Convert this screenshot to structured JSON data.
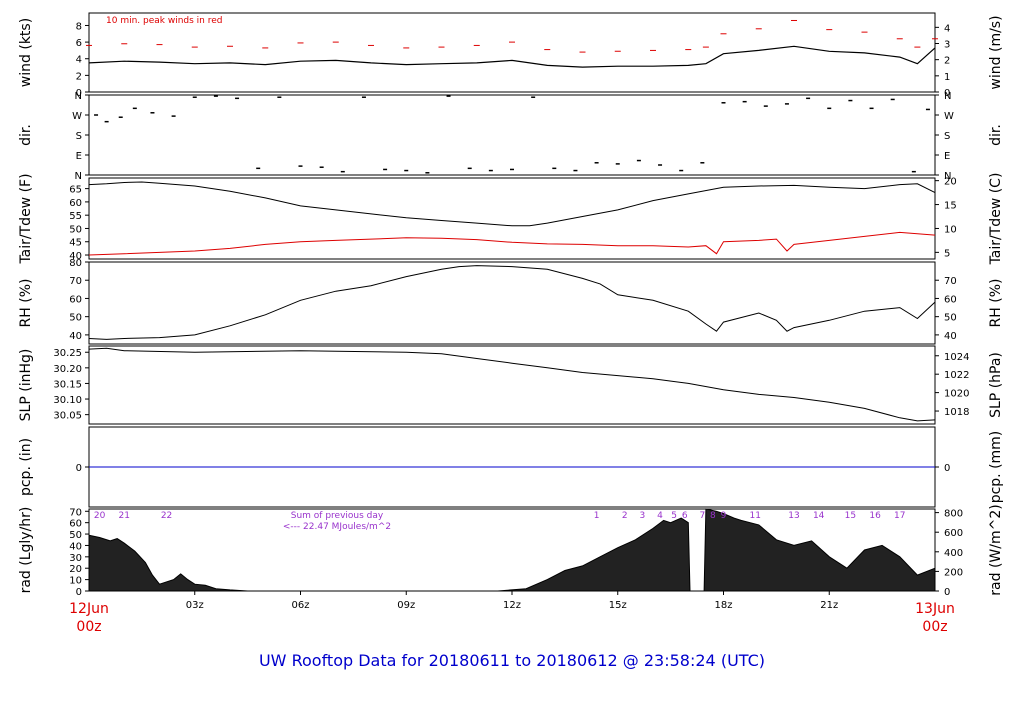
{
  "title": "UW Rooftop Data for 20180611  to  20180612 @ 23:58:24  (UTC)",
  "colors": {
    "title": "#0000cc",
    "date_labels": "#dd0000",
    "peak_winds": "#dd0000",
    "dewpoint": "#dd0000",
    "precip_line": "#0000cc",
    "annotation": "#9933cc",
    "trace": "#000000"
  },
  "time_axis": {
    "start_label_top": "12Jun",
    "start_label_bottom": "00z",
    "end_label_top": "13Jun",
    "end_label_bottom": "00z",
    "ticks": [
      {
        "hour": 3,
        "label": "03z"
      },
      {
        "hour": 6,
        "label": "06z"
      },
      {
        "hour": 9,
        "label": "09z"
      },
      {
        "hour": 12,
        "label": "12z"
      },
      {
        "hour": 15,
        "label": "15z"
      },
      {
        "hour": 18,
        "label": "18z"
      },
      {
        "hour": 21,
        "label": "21z"
      }
    ]
  },
  "chart_data": [
    {
      "type": "line",
      "panel": "wind",
      "ylabel": "wind (kts)",
      "ylabel_right": "wind (m/s)",
      "ylim": [
        0,
        9.5
      ],
      "yticks": [
        0,
        2,
        4,
        6,
        8
      ],
      "yticks_right": [
        0,
        1,
        2,
        3,
        4
      ],
      "annotation": "10 min. peak winds in red",
      "series": [
        {
          "color": "#000000",
          "x": [
            0,
            1,
            2,
            3,
            4,
            5,
            6,
            7,
            8,
            9,
            10,
            11,
            12,
            13,
            14,
            15,
            16,
            17,
            17.5,
            18,
            19,
            20,
            21,
            22,
            23,
            23.5,
            24
          ],
          "y": [
            3.5,
            3.7,
            3.6,
            3.4,
            3.5,
            3.3,
            3.7,
            3.8,
            3.5,
            3.3,
            3.4,
            3.5,
            3.8,
            3.2,
            3.0,
            3.1,
            3.1,
            3.2,
            3.4,
            4.6,
            5.0,
            5.5,
            4.9,
            4.7,
            4.2,
            3.4,
            5.3
          ]
        },
        {
          "color": "#dd0000",
          "x": [
            0,
            1,
            2,
            3,
            4,
            5,
            6,
            7,
            8,
            9,
            10,
            11,
            12,
            13,
            14,
            15,
            16,
            17,
            17.5,
            18,
            19,
            20,
            21,
            22,
            23,
            23.5,
            24
          ],
          "y": [
            5.6,
            5.8,
            5.7,
            5.4,
            5.5,
            5.3,
            5.9,
            6.0,
            5.6,
            5.3,
            5.4,
            5.6,
            6.0,
            5.1,
            4.8,
            4.9,
            5.0,
            5.1,
            5.4,
            7.0,
            7.6,
            8.6,
            7.5,
            7.2,
            6.4,
            5.4,
            6.4
          ]
        }
      ]
    },
    {
      "type": "scatter",
      "panel": "direction",
      "ylabel": "dir.",
      "yticks_labels": [
        "N",
        "E",
        "S",
        "W",
        "N"
      ],
      "ylim": [
        0,
        360
      ],
      "note": "y is wind direction in degrees (0=N at bottom, 360=N at top)",
      "x": [
        0.2,
        0.5,
        0.9,
        1.3,
        1.8,
        2.4,
        3.0,
        3.6,
        4.2,
        4.8,
        5.4,
        6.0,
        6.6,
        7.2,
        7.8,
        8.4,
        9.0,
        9.6,
        10.2,
        10.8,
        11.4,
        12.0,
        12.6,
        13.2,
        13.8,
        14.4,
        15.0,
        15.6,
        16.2,
        16.8,
        17.4,
        18.0,
        18.6,
        19.2,
        19.8,
        20.4,
        21.0,
        21.6,
        22.2,
        22.8,
        23.4,
        23.8
      ],
      "y": [
        270,
        240,
        260,
        300,
        280,
        265,
        350,
        355,
        345,
        30,
        350,
        40,
        35,
        15,
        350,
        25,
        20,
        10,
        355,
        30,
        20,
        25,
        350,
        30,
        20,
        55,
        50,
        65,
        45,
        20,
        55,
        325,
        330,
        310,
        320,
        345,
        300,
        335,
        300,
        340,
        15,
        295
      ]
    },
    {
      "type": "line",
      "panel": "temperature",
      "ylabel": "Tair/Tdew (F)",
      "ylabel_right": "Tair/Tdew (C)",
      "ylim": [
        38.5,
        69
      ],
      "yticks": [
        40,
        45,
        50,
        55,
        60,
        65
      ],
      "yticks_right": [
        5,
        10,
        15,
        20
      ],
      "series": [
        {
          "name": "Tair",
          "color": "#000000",
          "x": [
            0,
            0.5,
            1,
            1.5,
            2,
            3,
            4,
            5,
            6,
            7,
            8,
            9,
            10,
            11,
            12,
            12.5,
            13,
            14,
            15,
            16,
            17,
            18,
            19,
            20,
            21,
            22,
            23,
            23.5,
            24
          ],
          "y": [
            66.5,
            66.8,
            67.3,
            67.5,
            67.0,
            66.0,
            64.0,
            61.5,
            58.5,
            57.0,
            55.5,
            54.0,
            53.0,
            52.0,
            51.0,
            51.0,
            52.0,
            54.5,
            57.0,
            60.5,
            63.0,
            65.5,
            66.0,
            66.2,
            65.5,
            65.0,
            66.5,
            66.8,
            63.5
          ]
        },
        {
          "name": "Tdew",
          "color": "#dd0000",
          "x": [
            0,
            1,
            2,
            3,
            4,
            5,
            6,
            7,
            8,
            9,
            10,
            11,
            12,
            13,
            14,
            15,
            16,
            17,
            17.5,
            17.8,
            18,
            19,
            19.5,
            19.8,
            20,
            21,
            22,
            23,
            24
          ],
          "y": [
            40.0,
            40.5,
            41.0,
            41.5,
            42.5,
            44.0,
            45.0,
            45.5,
            46.0,
            46.5,
            46.3,
            45.8,
            44.8,
            44.2,
            44.0,
            43.5,
            43.5,
            43.0,
            43.5,
            40.5,
            45.0,
            45.5,
            46.0,
            41.5,
            44.0,
            45.5,
            47.0,
            48.5,
            47.5
          ]
        }
      ]
    },
    {
      "type": "line",
      "panel": "relative_humidity",
      "ylabel": "RH (%)",
      "ylabel_right": "RH (%)",
      "ylim": [
        35,
        80
      ],
      "yticks": [
        40,
        50,
        60,
        70,
        80
      ],
      "yticks_right": [
        40,
        50,
        60,
        70
      ],
      "x": [
        0,
        0.5,
        1,
        2,
        3,
        4,
        5,
        6,
        7,
        8,
        9,
        10,
        10.5,
        11,
        12,
        13,
        14,
        14.5,
        15,
        16,
        17,
        17.5,
        17.8,
        18,
        19,
        19.5,
        19.8,
        20,
        21,
        22,
        23,
        23.5,
        24
      ],
      "y": [
        38,
        37.5,
        38,
        38.5,
        40,
        45,
        51,
        59,
        64,
        67,
        72,
        76,
        77.5,
        78,
        77.5,
        76,
        71,
        68,
        62,
        59,
        53,
        46,
        42,
        47,
        52,
        48,
        42,
        44,
        48,
        53,
        55,
        49,
        58
      ]
    },
    {
      "type": "line",
      "panel": "sea_level_pressure",
      "ylabel": "SLP (inHg)",
      "ylabel_right": "SLP (hPa)",
      "ylim": [
        30.02,
        30.27
      ],
      "yticks": [
        30.05,
        30.1,
        30.15,
        30.2,
        30.25
      ],
      "yticks_labels": [
        "30.05",
        "30.10",
        "30.15",
        "30.20",
        "30.25"
      ],
      "yticks_right": [
        1018,
        1020,
        1022,
        1024
      ],
      "x": [
        0,
        0.5,
        1,
        3,
        6,
        9,
        10,
        11,
        12,
        13,
        14,
        15,
        16,
        17,
        18,
        19,
        20,
        21,
        22,
        23,
        23.5,
        24
      ],
      "y": [
        30.26,
        30.263,
        30.255,
        30.25,
        30.255,
        30.25,
        30.245,
        30.23,
        30.215,
        30.2,
        30.185,
        30.175,
        30.165,
        30.15,
        30.13,
        30.115,
        30.105,
        30.09,
        30.07,
        30.04,
        30.03,
        30.033
      ]
    },
    {
      "type": "line",
      "panel": "precipitation",
      "ylabel": "pcp. (in)",
      "ylabel_right": "pcp. (mm)",
      "yticks": [
        0
      ],
      "yticks_right": [
        0
      ],
      "x": [
        0,
        24
      ],
      "y": [
        0,
        0
      ]
    },
    {
      "type": "area",
      "panel": "solar_radiation",
      "ylabel": "rad (Lgly/hr)",
      "ylabel_right": "rad (W/m^2)",
      "ylim": [
        0,
        72
      ],
      "yticks": [
        0,
        10,
        20,
        30,
        40,
        50,
        60,
        70
      ],
      "yticks_right": [
        0,
        200,
        400,
        600,
        800
      ],
      "annotation_line1": "Sum of previous day",
      "annotation_line2": "<--- 22.47 MJoules/m^2",
      "hour_labels": [
        {
          "hour": 0.3,
          "label": "20"
        },
        {
          "hour": 1.0,
          "label": "21"
        },
        {
          "hour": 2.2,
          "label": "22"
        },
        {
          "hour": 14.4,
          "label": "1"
        },
        {
          "hour": 15.2,
          "label": "2"
        },
        {
          "hour": 15.7,
          "label": "3"
        },
        {
          "hour": 16.2,
          "label": "4"
        },
        {
          "hour": 16.6,
          "label": "5"
        },
        {
          "hour": 16.9,
          "label": "6"
        },
        {
          "hour": 17.4,
          "label": "7"
        },
        {
          "hour": 17.7,
          "label": "8"
        },
        {
          "hour": 18.0,
          "label": "9"
        },
        {
          "hour": 18.9,
          "label": "11"
        },
        {
          "hour": 20.0,
          "label": "13"
        },
        {
          "hour": 20.7,
          "label": "14"
        },
        {
          "hour": 21.6,
          "label": "15"
        },
        {
          "hour": 22.3,
          "label": "16"
        },
        {
          "hour": 23.0,
          "label": "17"
        }
      ],
      "x": [
        0,
        0.3,
        0.6,
        0.8,
        1.0,
        1.3,
        1.6,
        1.8,
        2.0,
        2.4,
        2.6,
        2.8,
        3.0,
        3.3,
        3.6,
        4.0,
        4.5,
        11.6,
        12.4,
        13.0,
        13.5,
        14.0,
        14.5,
        15.0,
        15.5,
        16.0,
        16.3,
        16.5,
        16.8,
        17.0,
        17.05,
        17.45,
        17.5,
        17.8,
        18.0,
        18.3,
        18.5,
        19.0,
        19.5,
        20.0,
        20.5,
        21.0,
        21.5,
        22.0,
        22.5,
        23.0,
        23.5,
        24
      ],
      "y": [
        49,
        47,
        44,
        46,
        42,
        35,
        25,
        14,
        6,
        10,
        15,
        10,
        6,
        5,
        2,
        1,
        0,
        0,
        2,
        10,
        18,
        22,
        30,
        38,
        45,
        55,
        62,
        60,
        64,
        60,
        0,
        0,
        72,
        70,
        68,
        64,
        62,
        58,
        45,
        40,
        44,
        30,
        20,
        36,
        40,
        30,
        14,
        20
      ]
    }
  ]
}
